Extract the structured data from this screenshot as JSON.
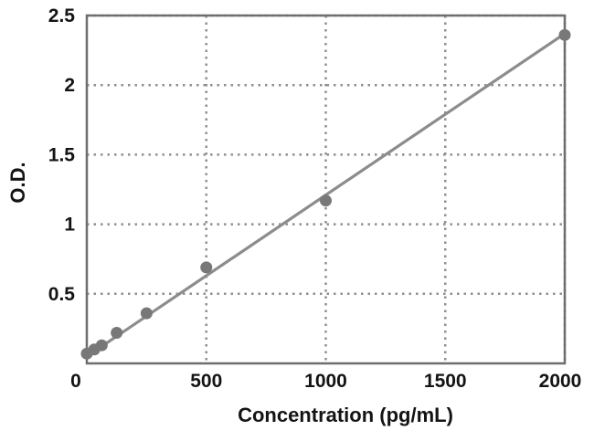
{
  "chart_data": {
    "type": "scatter",
    "title": "",
    "xlabel": "Concentration (pg/mL)",
    "ylabel": "O.D.",
    "xlim": [
      0,
      2000
    ],
    "ylim": [
      0,
      2.5
    ],
    "x_ticks": [
      0,
      500,
      1000,
      1500,
      2000
    ],
    "x_tick_labels": [
      "0",
      "500",
      "1000",
      "1500",
      "2000"
    ],
    "y_ticks": [
      0.5,
      1,
      1.5,
      2,
      2.5
    ],
    "y_tick_labels": [
      "0.5",
      "1",
      "1.5",
      "2",
      "2.5"
    ],
    "grid": "dotted-both-axes",
    "legend": "none",
    "series": [
      {
        "name": "standard-curve-points",
        "points": [
          {
            "x": 0,
            "y": 0.07
          },
          {
            "x": 31.25,
            "y": 0.1
          },
          {
            "x": 62.5,
            "y": 0.13
          },
          {
            "x": 125,
            "y": 0.22
          },
          {
            "x": 250,
            "y": 0.36
          },
          {
            "x": 500,
            "y": 0.69
          },
          {
            "x": 1000,
            "y": 1.17
          },
          {
            "x": 2000,
            "y": 2.36
          }
        ]
      }
    ],
    "trendline": {
      "x1": 0,
      "y1": 0.05,
      "x2": 2000,
      "y2": 2.37
    },
    "colors": {
      "marker": "#787878",
      "line": "#8c8c8c",
      "frame": "#6e6e6e",
      "grid": "#8f8f8f",
      "text": "#141414",
      "background": "#ffffff"
    }
  }
}
